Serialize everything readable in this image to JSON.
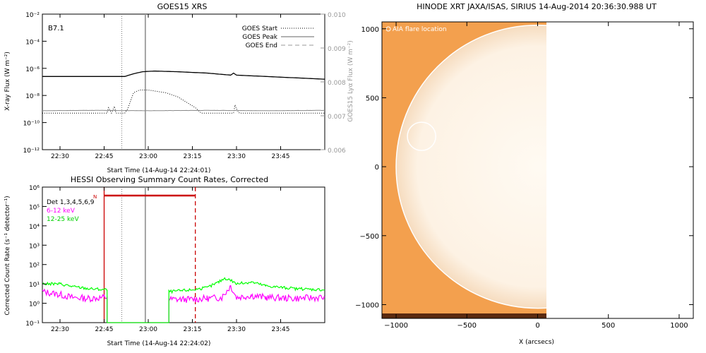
{
  "chart_data": [
    {
      "type": "line",
      "title": "GOES15 XRS",
      "xlabel": "Start Time (14-Aug-14 22:24:01)",
      "ylabel": "X-ray Flux (W m⁻²)",
      "y2label": "GOES15 Lyα Flux (W m⁻²)",
      "y_scale": "log",
      "ylim": [
        "1e-12",
        "1e-2"
      ],
      "y2lim": [
        0.006,
        0.01
      ],
      "x_ticks": [
        "22:30",
        "22:45",
        "23:00",
        "23:15",
        "23:30",
        "23:45"
      ],
      "x_tick_minutes": [
        30,
        45,
        60,
        75,
        90,
        105
      ],
      "xlim_minutes": [
        24,
        120
      ],
      "y_ticks": [
        "10⁻¹²",
        "10⁻¹⁰",
        "10⁻⁸",
        "10⁻⁶",
        "10⁻⁴",
        "10⁻²"
      ],
      "y_tick_exponents": [
        -12,
        -10,
        -8,
        -6,
        -4,
        -2
      ],
      "y2_ticks": [
        "0.006",
        "0.007",
        "0.008",
        "0.009",
        "0.010"
      ],
      "y2_tick_values": [
        0.006,
        0.007,
        0.008,
        0.009,
        0.01
      ],
      "annotation": "B7.1",
      "legend": [
        {
          "label": "GOES Start",
          "style": "dotted"
        },
        {
          "label": "GOES Peak",
          "style": "solid"
        },
        {
          "label": "GOES End",
          "style": "dashed"
        }
      ],
      "legend_position": "top-right",
      "markers": {
        "start": "22:51",
        "peak": "22:59",
        "end": "22:59"
      },
      "series": [
        {
          "values_log10": [
            [
              24,
              -6.6
            ],
            [
              40,
              -6.6
            ],
            [
              52,
              -6.6
            ],
            [
              55,
              -6.4
            ],
            [
              58,
              -6.25
            ],
            [
              62,
              -6.2
            ],
            [
              70,
              -6.25
            ],
            [
              80,
              -6.35
            ],
            [
              88,
              -6.5
            ],
            [
              89,
              -6.35
            ],
            [
              90,
              -6.5
            ],
            [
              100,
              -6.6
            ],
            [
              110,
              -6.7
            ],
            [
              120,
              -6.8
            ]
          ]
        },
        {
          "values_log10": [
            [
              24,
              -9.3
            ],
            [
              46,
              -9.3
            ],
            [
              46.5,
              -8.9
            ],
            [
              47.5,
              -9.3
            ],
            [
              48.5,
              -8.8
            ],
            [
              49,
              -9.3
            ],
            [
              52,
              -9.3
            ],
            [
              53,
              -9.0
            ],
            [
              55,
              -7.8
            ],
            [
              57,
              -7.6
            ],
            [
              60,
              -7.6
            ],
            [
              63,
              -7.7
            ],
            [
              66,
              -7.8
            ],
            [
              70,
              -8.1
            ],
            [
              73,
              -8.5
            ],
            [
              76,
              -8.9
            ],
            [
              78,
              -9.3
            ],
            [
              89,
              -9.3
            ],
            [
              89.5,
              -8.7
            ],
            [
              90,
              -9.0
            ],
            [
              91,
              -9.3
            ],
            [
              120,
              -9.3
            ]
          ]
        },
        {
          "values": [
            [
              24,
              0.00715
            ],
            [
              40,
              0.00716
            ],
            [
              60,
              0.00715
            ],
            [
              80,
              0.00716
            ],
            [
              100,
              0.00715
            ],
            [
              120,
              0.00716
            ]
          ]
        }
      ]
    },
    {
      "type": "line",
      "title": "HESSI Observing Summary Count Rates, Corrected",
      "xlabel": "Start Time (14-Aug-14 22:24:02)",
      "ylabel": "Corrected Count Rate (s⁻¹ detector⁻¹)",
      "y_scale": "log",
      "ylim": [
        "1e-1",
        "1e6"
      ],
      "x_ticks": [
        "22:30",
        "22:45",
        "23:00",
        "23:15",
        "23:30",
        "23:45"
      ],
      "x_tick_minutes": [
        30,
        45,
        60,
        75,
        90,
        105
      ],
      "xlim_minutes": [
        24,
        120
      ],
      "y_ticks": [
        "10⁻¹",
        "10⁰",
        "10¹",
        "10²",
        "10³",
        "10⁴",
        "10⁵",
        "10⁶"
      ],
      "y_tick_exponents": [
        -1,
        0,
        1,
        2,
        3,
        4,
        5,
        6
      ],
      "legend_position": "top-left",
      "legend_header": "Det 1,3,4,5,6,9",
      "night_label": "N",
      "markers": {
        "start": "22:51",
        "peak": "22:59",
        "end": "22:59"
      },
      "night_interval": [
        "22:45",
        "23:16"
      ],
      "series": [
        {
          "name": "6-12 keV",
          "color": "#ff00ff",
          "values_log10": [
            [
              24,
              0.6
            ],
            [
              30,
              0.45
            ],
            [
              34,
              0.3
            ],
            [
              40,
              0.25
            ],
            [
              45,
              0.3
            ],
            [
              46,
              0.3
            ],
            [
              46.01,
              -1
            ],
            [
              67,
              -1
            ],
            [
              67.01,
              0.2
            ],
            [
              75,
              0.2
            ],
            [
              80,
              0.25
            ],
            [
              85,
              0.3
            ],
            [
              88,
              0.9
            ],
            [
              90,
              0.3
            ],
            [
              95,
              0.4
            ],
            [
              100,
              0.3
            ],
            [
              110,
              0.25
            ],
            [
              120,
              0.3
            ]
          ]
        },
        {
          "name": "12-25 keV",
          "color": "#00ff00",
          "values_log10": [
            [
              24,
              1.0
            ],
            [
              30,
              1.0
            ],
            [
              35,
              0.85
            ],
            [
              40,
              0.75
            ],
            [
              46,
              0.7
            ],
            [
              46.01,
              -1
            ],
            [
              67,
              -1
            ],
            [
              67.01,
              0.6
            ],
            [
              75,
              0.7
            ],
            [
              80,
              0.8
            ],
            [
              84,
              1.1
            ],
            [
              86,
              1.3
            ],
            [
              88,
              1.2
            ],
            [
              90,
              1.0
            ],
            [
              95,
              1.1
            ],
            [
              100,
              0.9
            ],
            [
              110,
              0.75
            ],
            [
              120,
              0.7
            ]
          ]
        }
      ]
    },
    {
      "type": "heatmap",
      "title": "HINODE XRT JAXA/ISAS, SIRIUS 14-Aug-2014 20:36:30.988 UT",
      "xlabel": "X (arcsecs)",
      "ylabel": "",
      "xlim": [
        -1100,
        1100
      ],
      "ylim": [
        -1100,
        1050
      ],
      "x_ticks": [
        "−1000",
        "−500",
        "0",
        "500",
        "1000"
      ],
      "x_tick_values": [
        -1000,
        -500,
        0,
        500,
        1000
      ],
      "y_ticks": [
        "−1000",
        "−500",
        "0",
        "500",
        "1000"
      ],
      "y_tick_values": [
        -1000,
        -500,
        0,
        500,
        1000
      ],
      "image_extent_x": [
        -1050,
        70
      ],
      "image_extent_y": [
        -1050,
        1030
      ],
      "solar_radius": 1000,
      "annotation": "AIA flare location",
      "flare_circle": {
        "x": -820,
        "y": 220,
        "r": 100
      }
    }
  ]
}
